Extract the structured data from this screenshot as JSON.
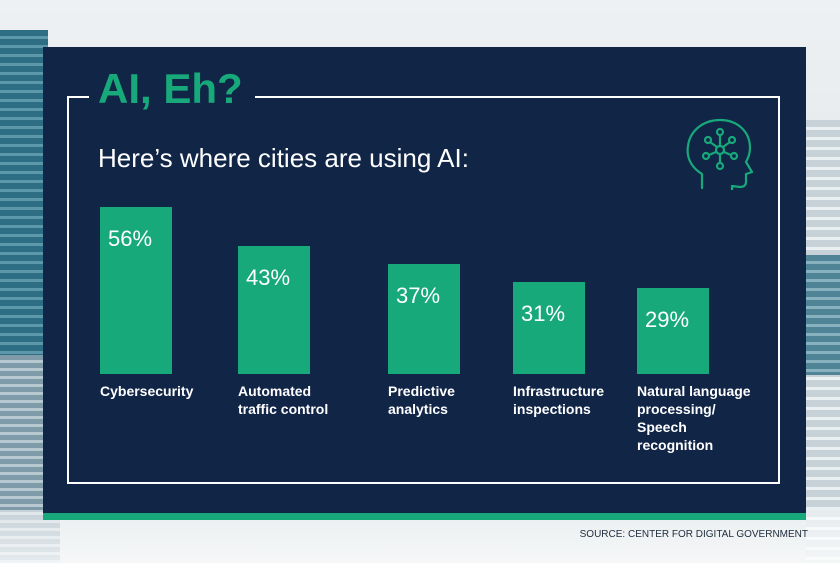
{
  "header": {
    "title": "AI, Eh?",
    "subtitle": "Here’s where cities are using AI:"
  },
  "icons": {
    "head_icon": "head-with-network-nodes-icon"
  },
  "colors": {
    "panel": "#112547",
    "accent": "#17a979",
    "text": "#ffffff"
  },
  "chart_data": {
    "type": "bar",
    "title": "AI, Eh?",
    "subtitle": "Here’s where cities are using AI:",
    "categories": [
      [
        "Cybersecurity"
      ],
      [
        "Automated",
        "traffic control"
      ],
      [
        "Predictive",
        "analytics"
      ],
      [
        "Infrastructure",
        "inspections"
      ],
      [
        "Natural language",
        "processing/",
        "Speech",
        "recognition"
      ]
    ],
    "values": [
      56,
      43,
      37,
      31,
      29
    ],
    "value_labels": [
      "56%",
      "43%",
      "37%",
      "31%",
      "29%"
    ],
    "ylim": [
      0,
      56
    ],
    "grid": false
  },
  "source": "SOURCE: CENTER FOR DIGITAL GOVERNMENT"
}
